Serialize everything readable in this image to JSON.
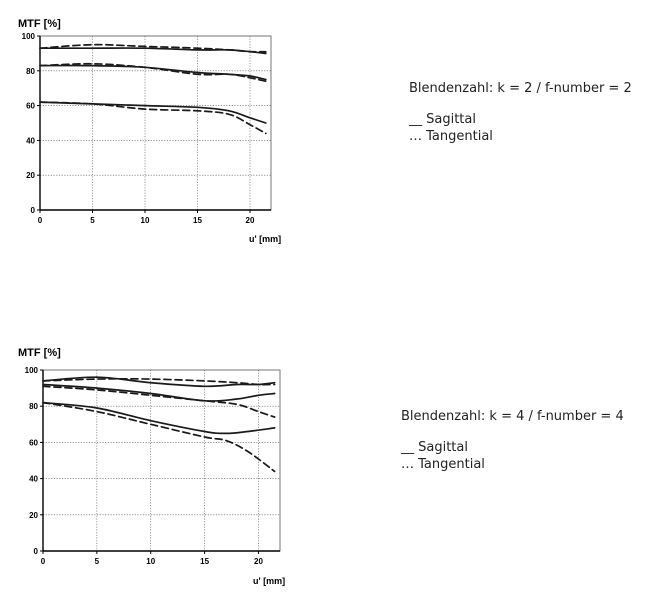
{
  "chart_data": [
    {
      "type": "line",
      "title": "MTF [%]",
      "xlabel": "u' [mm]",
      "ylabel": "MTF [%]",
      "xlim": [
        0,
        22
      ],
      "ylim": [
        0,
        100
      ],
      "x_ticks": [
        "0",
        "5",
        "10",
        "15",
        "20"
      ],
      "y_ticks": [
        "0",
        "20",
        "40",
        "60",
        "80",
        "100"
      ],
      "grid": true,
      "series": [
        {
          "style": "solid",
          "x": [
            0,
            5,
            10,
            15,
            18,
            20,
            21.5
          ],
          "y": [
            93,
            93,
            93,
            92,
            92,
            91,
            90
          ]
        },
        {
          "style": "dashed",
          "x": [
            0,
            5,
            10,
            15,
            18,
            20,
            21.5
          ],
          "y": [
            93,
            95,
            94,
            93,
            92,
            91,
            91
          ]
        },
        {
          "style": "solid",
          "x": [
            0,
            5,
            10,
            15,
            18,
            20,
            21.5
          ],
          "y": [
            83,
            83,
            82,
            79,
            78,
            77,
            75
          ]
        },
        {
          "style": "dashed",
          "x": [
            0,
            5,
            10,
            15,
            18,
            20,
            21.5
          ],
          "y": [
            83,
            84,
            82,
            78,
            78,
            76,
            74
          ]
        },
        {
          "style": "solid",
          "x": [
            0,
            5,
            10,
            15,
            18,
            20,
            21.5
          ],
          "y": [
            62,
            61,
            60,
            59,
            57,
            53,
            50
          ]
        },
        {
          "style": "dashed",
          "x": [
            0,
            5,
            10,
            15,
            18,
            20,
            21.5
          ],
          "y": [
            62,
            61,
            58,
            57,
            55,
            49,
            44
          ]
        }
      ]
    },
    {
      "type": "line",
      "title": "MTF [%]",
      "xlabel": "u' [mm]",
      "ylabel": "MTF [%]",
      "xlim": [
        0,
        22
      ],
      "ylim": [
        0,
        100
      ],
      "x_ticks": [
        "0",
        "5",
        "10",
        "15",
        "20"
      ],
      "y_ticks": [
        "0",
        "20",
        "40",
        "60",
        "80",
        "100"
      ],
      "grid": true,
      "series": [
        {
          "style": "solid",
          "x": [
            0,
            5,
            10,
            15,
            18,
            20,
            21.5
          ],
          "y": [
            94,
            96,
            93,
            91,
            92,
            92,
            93
          ]
        },
        {
          "style": "dashed",
          "x": [
            0,
            5,
            10,
            15,
            18,
            20,
            21.5
          ],
          "y": [
            94,
            95,
            95,
            94,
            93,
            92,
            92
          ]
        },
        {
          "style": "solid",
          "x": [
            0,
            5,
            10,
            15,
            18,
            20,
            21.5
          ],
          "y": [
            92,
            90,
            87,
            83,
            84,
            86,
            87
          ]
        },
        {
          "style": "dashed",
          "x": [
            0,
            5,
            10,
            15,
            18,
            20,
            21.5
          ],
          "y": [
            91,
            89,
            86,
            83,
            81,
            77,
            74
          ]
        },
        {
          "style": "solid",
          "x": [
            0,
            5,
            10,
            15,
            17,
            19,
            21.5
          ],
          "y": [
            82,
            79,
            72,
            66,
            65,
            66,
            68
          ]
        },
        {
          "style": "dashed",
          "x": [
            0,
            5,
            10,
            15,
            17,
            19,
            21.5
          ],
          "y": [
            82,
            77,
            70,
            63,
            61,
            55,
            44
          ]
        }
      ]
    }
  ],
  "legends": [
    {
      "caption": "Blendenzahl: k = 2 / f-number = 2",
      "sagittal": "__ Sagittal",
      "tangential": "… Tangential"
    },
    {
      "caption": "Blendenzahl: k = 4 / f-number = 4",
      "sagittal": "__ Sagittal",
      "tangential": "… Tangential"
    }
  ]
}
